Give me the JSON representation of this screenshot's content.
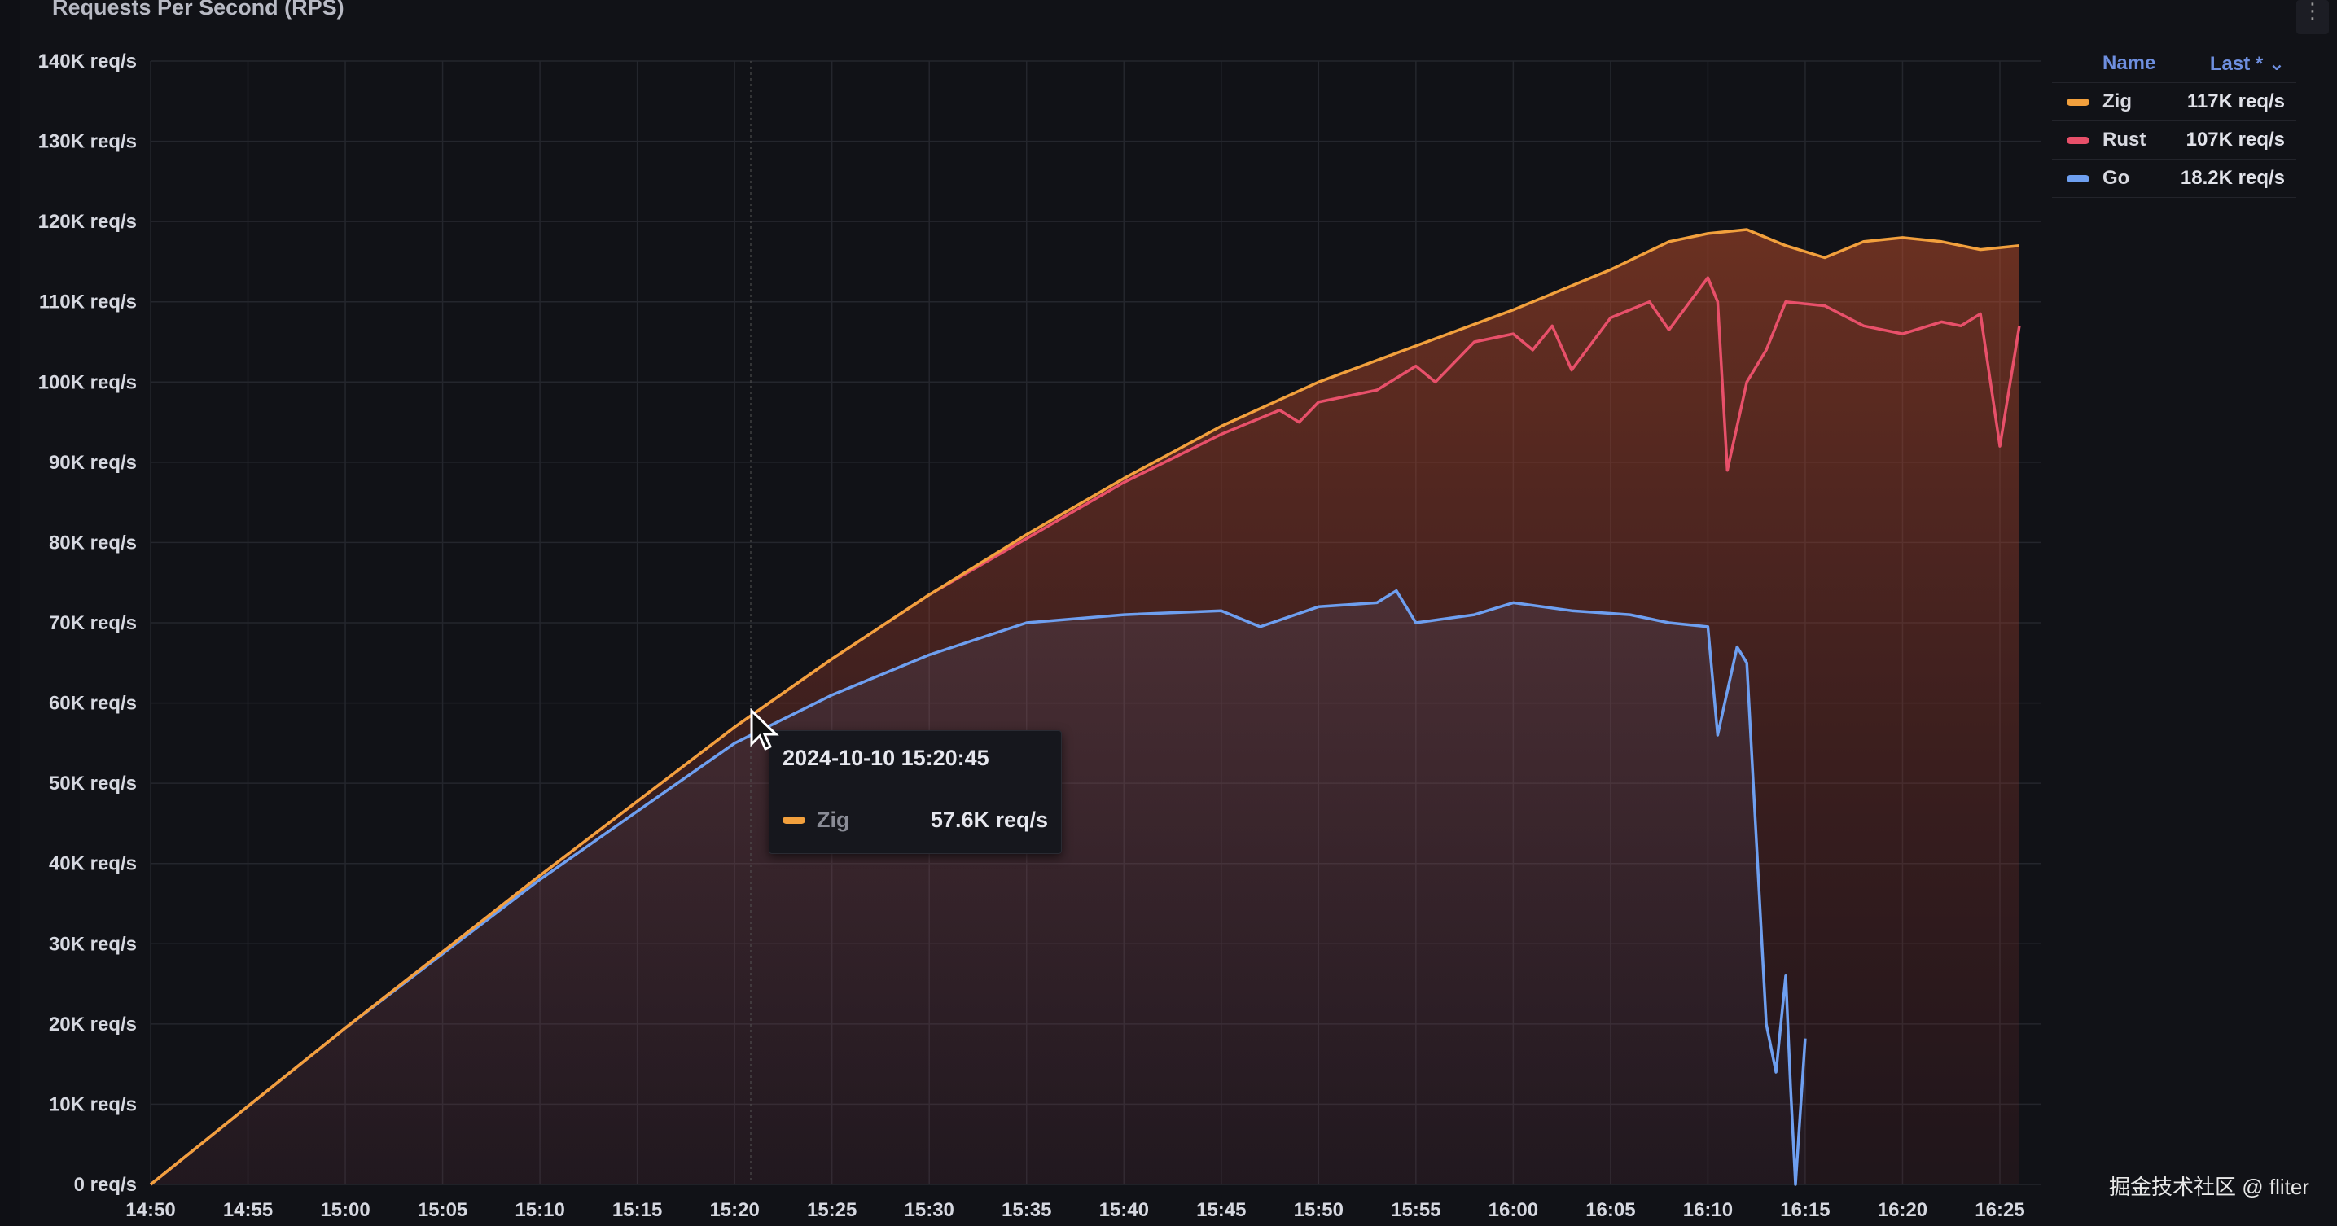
{
  "panel": {
    "title": "Requests Per Second (RPS)",
    "menu_icon": "vertical-ellipsis-icon"
  },
  "legend": {
    "name_header": "Name",
    "last_header": "Last *",
    "items": [
      {
        "name": "Zig",
        "last": "117K req/s",
        "color": "#f2a03d"
      },
      {
        "name": "Rust",
        "last": "107K req/s",
        "color": "#e8506a"
      },
      {
        "name": "Go",
        "last": "18.2K req/s",
        "color": "#6e9ff0"
      }
    ]
  },
  "tooltip": {
    "time": "2024-10-10 15:20:45",
    "series": "Zig",
    "value": "57.6K req/s",
    "color": "#f2a03d"
  },
  "watermark": "掘金技术社区 @ fliter",
  "chart_data": {
    "type": "line",
    "title": "Requests Per Second (RPS)",
    "y_unit": "req/s",
    "ylim": [
      0,
      140000
    ],
    "xlim": [
      "14:50",
      "16:26"
    ],
    "grid": true,
    "legend_placement": "right",
    "y_ticks": [
      "0 req/s",
      "10K req/s",
      "20K req/s",
      "30K req/s",
      "40K req/s",
      "50K req/s",
      "60K req/s",
      "70K req/s",
      "80K req/s",
      "90K req/s",
      "100K req/s",
      "110K req/s",
      "120K req/s",
      "130K req/s",
      "140K req/s"
    ],
    "x_ticks": [
      "14:50",
      "14:55",
      "15:00",
      "15:05",
      "15:10",
      "15:15",
      "15:20",
      "15:25",
      "15:30",
      "15:35",
      "15:40",
      "15:45",
      "15:50",
      "15:55",
      "16:00",
      "16:05",
      "16:10",
      "16:15",
      "16:20",
      "16:25"
    ],
    "series": [
      {
        "name": "Zig",
        "color": "#f2a03d",
        "points": [
          [
            "14:50",
            0
          ],
          [
            "15:00",
            19500
          ],
          [
            "15:10",
            38500
          ],
          [
            "15:20",
            57000
          ],
          [
            "15:25",
            65500
          ],
          [
            "15:30",
            73500
          ],
          [
            "15:35",
            81000
          ],
          [
            "15:40",
            88000
          ],
          [
            "15:45",
            94500
          ],
          [
            "15:50",
            100000
          ],
          [
            "15:55",
            104500
          ],
          [
            "16:00",
            109000
          ],
          [
            "16:05",
            114000
          ],
          [
            "16:08",
            117500
          ],
          [
            "16:10",
            118500
          ],
          [
            "16:12",
            119000
          ],
          [
            "16:14",
            117000
          ],
          [
            "16:16",
            115500
          ],
          [
            "16:18",
            117500
          ],
          [
            "16:20",
            118000
          ],
          [
            "16:22",
            117500
          ],
          [
            "16:24",
            116500
          ],
          [
            "16:26",
            117000
          ]
        ]
      },
      {
        "name": "Rust",
        "color": "#e8506a",
        "points": [
          [
            "14:50",
            0
          ],
          [
            "15:00",
            19500
          ],
          [
            "15:10",
            38500
          ],
          [
            "15:20",
            57000
          ],
          [
            "15:25",
            65500
          ],
          [
            "15:30",
            73500
          ],
          [
            "15:35",
            80500
          ],
          [
            "15:40",
            87500
          ],
          [
            "15:45",
            93500
          ],
          [
            "15:48",
            96500
          ],
          [
            "15:49",
            95000
          ],
          [
            "15:50",
            97500
          ],
          [
            "15:53",
            99000
          ],
          [
            "15:55",
            102000
          ],
          [
            "15:56",
            100000
          ],
          [
            "15:58",
            105000
          ],
          [
            "16:00",
            106000
          ],
          [
            "16:01",
            104000
          ],
          [
            "16:02",
            107000
          ],
          [
            "16:03",
            101500
          ],
          [
            "16:05",
            108000
          ],
          [
            "16:07",
            110000
          ],
          [
            "16:08",
            106500
          ],
          [
            "16:10",
            113000
          ],
          [
            "16:10:30",
            110000
          ],
          [
            "16:11",
            89000
          ],
          [
            "16:12",
            100000
          ],
          [
            "16:13",
            104000
          ],
          [
            "16:14",
            110000
          ],
          [
            "16:16",
            109500
          ],
          [
            "16:18",
            107000
          ],
          [
            "16:20",
            106000
          ],
          [
            "16:22",
            107500
          ],
          [
            "16:23",
            107000
          ],
          [
            "16:24",
            108500
          ],
          [
            "16:25",
            92000
          ],
          [
            "16:26",
            107000
          ]
        ]
      },
      {
        "name": "Go",
        "color": "#6e9ff0",
        "points": [
          [
            "14:50",
            0
          ],
          [
            "15:00",
            19500
          ],
          [
            "15:10",
            38000
          ],
          [
            "15:15",
            46500
          ],
          [
            "15:20",
            55000
          ],
          [
            "15:25",
            61000
          ],
          [
            "15:30",
            66000
          ],
          [
            "15:35",
            70000
          ],
          [
            "15:40",
            71000
          ],
          [
            "15:45",
            71500
          ],
          [
            "15:47",
            69500
          ],
          [
            "15:50",
            72000
          ],
          [
            "15:53",
            72500
          ],
          [
            "15:54",
            74000
          ],
          [
            "15:55",
            70000
          ],
          [
            "15:58",
            71000
          ],
          [
            "16:00",
            72500
          ],
          [
            "16:03",
            71500
          ],
          [
            "16:06",
            71000
          ],
          [
            "16:08",
            70000
          ],
          [
            "16:10",
            69500
          ],
          [
            "16:10:30",
            56000
          ],
          [
            "16:11:30",
            67000
          ],
          [
            "16:12",
            65000
          ],
          [
            "16:13",
            20000
          ],
          [
            "16:13:30",
            14000
          ],
          [
            "16:14",
            26000
          ],
          [
            "16:14:15",
            12000
          ],
          [
            "16:14:30",
            0
          ],
          [
            "16:15",
            18200
          ]
        ]
      }
    ]
  }
}
